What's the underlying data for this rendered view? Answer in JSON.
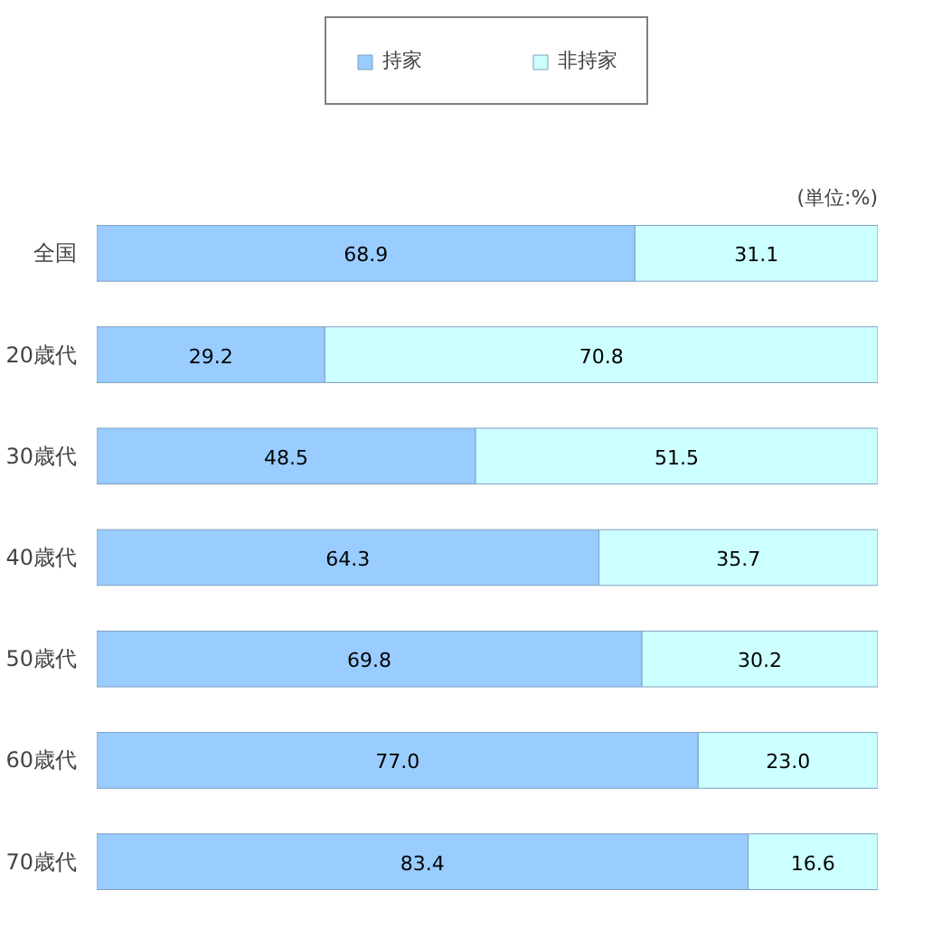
{
  "chart_data": {
    "type": "bar",
    "orientation": "horizontal",
    "stacked": true,
    "legend": "top",
    "grid": false,
    "tick_labels": "y",
    "annotations": [
      "(単位:%)"
    ],
    "categories": [
      "全国",
      "20歳代",
      "30歳代",
      "40歳代",
      "50歳代",
      "60歳代",
      "70歳代"
    ],
    "series": [
      {
        "name": "持家",
        "color": "#99ccff",
        "values": [
          68.9,
          29.2,
          48.5,
          64.3,
          69.8,
          77.0,
          83.4
        ],
        "value_labels": [
          "68.9",
          "29.2",
          "48.5",
          "64.3",
          "69.8",
          "77.0",
          "83.4"
        ]
      },
      {
        "name": "非持家",
        "color": "#ccffff",
        "values": [
          31.1,
          70.8,
          51.5,
          35.7,
          30.2,
          23.0,
          16.6
        ],
        "value_labels": [
          "31.1",
          "70.8",
          "51.5",
          "35.7",
          "30.2",
          "23.0",
          "16.6"
        ]
      }
    ]
  }
}
